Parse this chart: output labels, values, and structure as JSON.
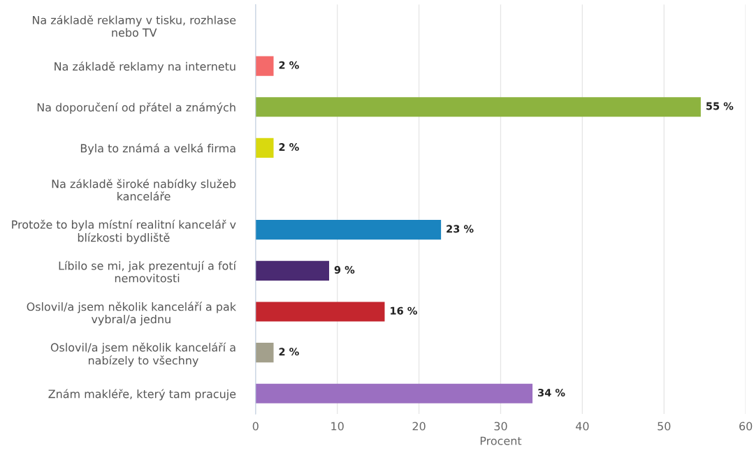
{
  "chart_data": {
    "type": "bar",
    "orientation": "horizontal",
    "xlabel": "Procent",
    "categories": [
      "Na základě reklamy v tisku, rozhlase\nnebo TV",
      "Na základě reklamy na internetu",
      "Na doporučení od přátel a známých",
      "Byla to známá a velká firma",
      "Na základě široké nabídky služeb\nkanceláře",
      "Protože to byla místní realitní kancelář v\nblízkosti bydliště",
      "Líbilo se mi, jak prezentují a fotí\nnemovitosti",
      "Oslovil/a jsem několik kanceláří a pak\nvybral/a jednu",
      "Oslovil/a jsem několik kanceláří a\nnabízely to všechny",
      "Znám makléře, který tam pracuje"
    ],
    "values": [
      0,
      2.2,
      54.5,
      2.2,
      0,
      22.7,
      9.0,
      15.8,
      2.2,
      33.9
    ],
    "value_labels": [
      null,
      "2 %",
      "55 %",
      "2 %",
      null,
      "23 %",
      "9 %",
      "16 %",
      "2 %",
      "34 %"
    ],
    "colors": [
      "#f46a6a",
      "#f46a6a",
      "#8db33f",
      "#d9d90f",
      "#1a84bf",
      "#1a84bf",
      "#4a2a72",
      "#c4262e",
      "#a3a08c",
      "#9b6fc1"
    ],
    "xlim": [
      0,
      60
    ],
    "xticks": [
      0,
      10,
      20,
      30,
      40,
      50,
      60
    ],
    "grid": "x",
    "legend": false
  }
}
